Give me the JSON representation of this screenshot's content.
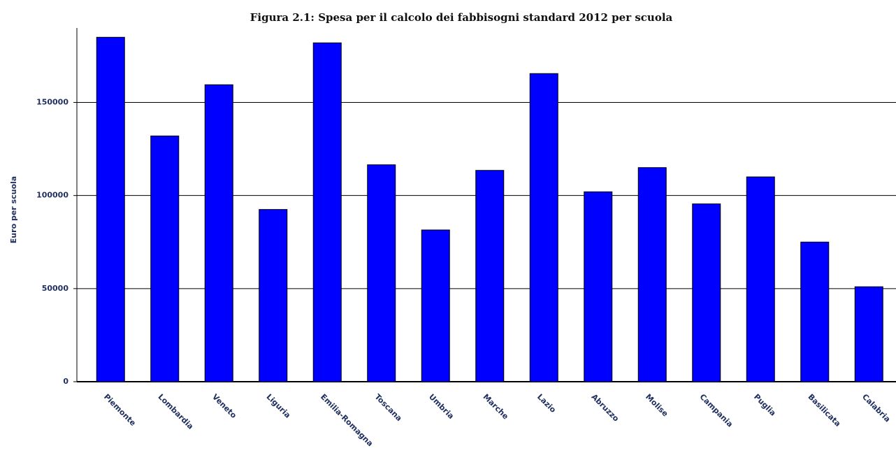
{
  "chart_data": {
    "type": "bar",
    "title": "Figura 2.1: Spesa per il calcolo dei fabbisogni standard 2012 per scuola",
    "y_label": "Euro per scuola",
    "categories": [
      "Piemonte",
      "Lombardia",
      "Veneto",
      "Liguria",
      "Emilia-Romagna",
      "Toscana",
      "Umbria",
      "Marche",
      "Lazio",
      "Abruzzo",
      "Molise",
      "Campania",
      "Puglia",
      "Basilicata",
      "Calabria"
    ],
    "values": [
      185000,
      132000,
      159500,
      92500,
      182000,
      116500,
      81500,
      113500,
      165500,
      102000,
      115000,
      95500,
      110000,
      75000,
      51000
    ],
    "color": "#0000ff",
    "ylim": [
      0,
      190000
    ],
    "yticks": [
      0,
      50000,
      100000,
      150000
    ],
    "grid": true
  }
}
